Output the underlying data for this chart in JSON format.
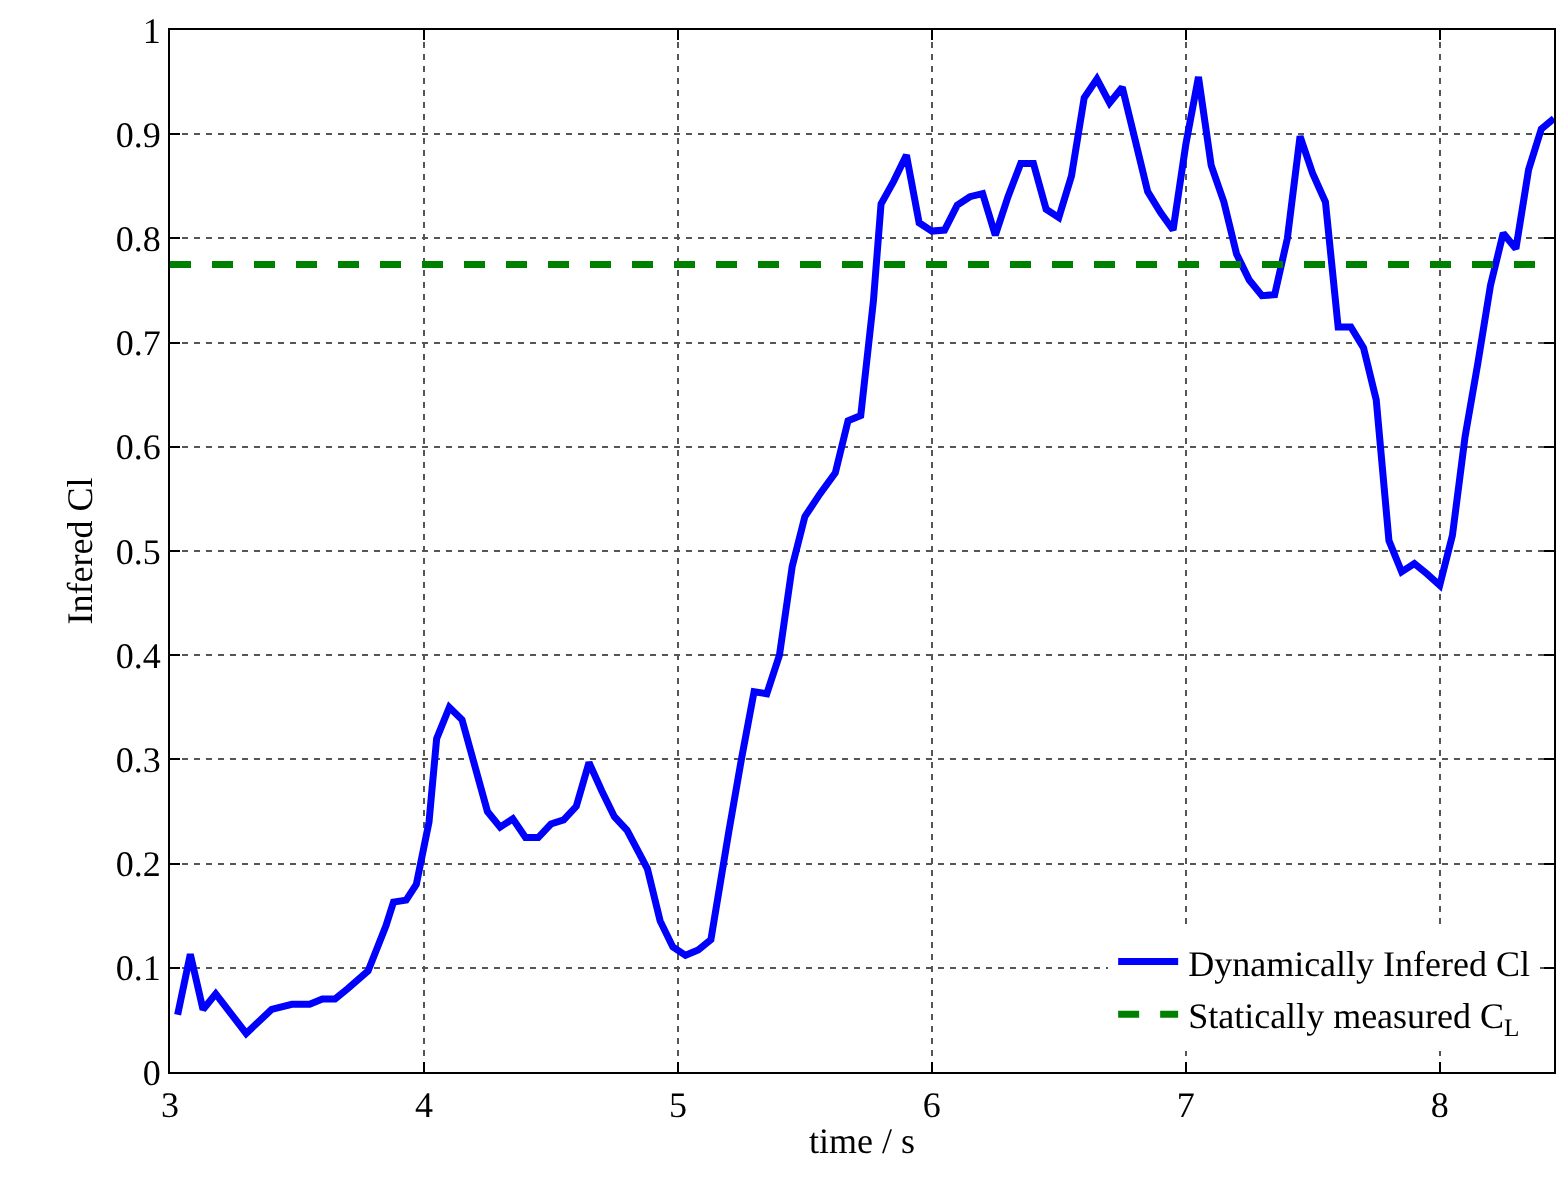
{
  "chart_data": {
    "type": "line",
    "xlabel": "time / s",
    "ylabel": "Infered Cl",
    "xlim": [
      3,
      8.45
    ],
    "xticks": [
      3,
      4,
      5,
      6,
      7,
      8
    ],
    "ylim": [
      0,
      1
    ],
    "yticks": [
      0,
      0.1,
      0.2,
      0.3,
      0.4,
      0.5,
      0.6,
      0.7,
      0.8,
      0.9,
      1
    ],
    "grid": true,
    "legend": "bottom right",
    "line_style": "solid",
    "marker": "none",
    "series": [
      {
        "name": "Dynamically Infered Cl",
        "color": "#0000ff",
        "x": [
          3.03,
          3.08,
          3.13,
          3.18,
          3.3,
          3.4,
          3.48,
          3.55,
          3.6,
          3.65,
          3.7,
          3.78,
          3.85,
          3.88,
          3.93,
          3.97,
          4.02,
          4.05,
          4.1,
          4.15,
          4.25,
          4.3,
          4.35,
          4.4,
          4.45,
          4.5,
          4.55,
          4.6,
          4.65,
          4.7,
          4.75,
          4.8,
          4.88,
          4.93,
          4.98,
          5.03,
          5.08,
          5.13,
          5.2,
          5.25,
          5.3,
          5.35,
          5.4,
          5.45,
          5.5,
          5.56,
          5.62,
          5.67,
          5.72,
          5.77,
          5.8,
          5.85,
          5.9,
          5.95,
          6.0,
          6.05,
          6.1,
          6.15,
          6.2,
          6.25,
          6.3,
          6.35,
          6.4,
          6.45,
          6.5,
          6.55,
          6.6,
          6.65,
          6.7,
          6.75,
          6.8,
          6.85,
          6.9,
          6.95,
          7.0,
          7.05,
          7.1,
          7.15,
          7.2,
          7.25,
          7.3,
          7.35,
          7.4,
          7.45,
          7.5,
          7.55,
          7.6,
          7.65,
          7.7,
          7.75,
          7.8,
          7.85,
          7.9,
          7.95,
          8.0,
          8.05,
          8.1,
          8.15,
          8.2,
          8.25,
          8.3,
          8.35,
          8.4,
          8.45
        ],
        "values": [
          0.055,
          0.113,
          0.06,
          0.075,
          0.037,
          0.06,
          0.065,
          0.065,
          0.07,
          0.07,
          0.08,
          0.097,
          0.14,
          0.163,
          0.165,
          0.18,
          0.24,
          0.32,
          0.35,
          0.338,
          0.25,
          0.235,
          0.243,
          0.225,
          0.225,
          0.238,
          0.242,
          0.255,
          0.297,
          0.27,
          0.245,
          0.232,
          0.195,
          0.145,
          0.12,
          0.112,
          0.117,
          0.127,
          0.23,
          0.3,
          0.365,
          0.363,
          0.4,
          0.485,
          0.533,
          0.555,
          0.575,
          0.625,
          0.63,
          0.74,
          0.833,
          0.855,
          0.88,
          0.815,
          0.807,
          0.808,
          0.832,
          0.84,
          0.843,
          0.803,
          0.84,
          0.872,
          0.872,
          0.828,
          0.82,
          0.86,
          0.935,
          0.953,
          0.93,
          0.945,
          0.895,
          0.845,
          0.825,
          0.808,
          0.89,
          0.955,
          0.87,
          0.835,
          0.785,
          0.76,
          0.745,
          0.746,
          0.8,
          0.898,
          0.862,
          0.835,
          0.715,
          0.715,
          0.695,
          0.645,
          0.51,
          0.48,
          0.488,
          0.478,
          0.467,
          0.515,
          0.61,
          0.68,
          0.755,
          0.805,
          0.79,
          0.866,
          0.905,
          0.915
        ]
      }
    ],
    "ref_lines": [
      {
        "axis": "y",
        "value": 0.775,
        "label": "Statically measured C$_{L}$",
        "color": "#008000",
        "line_style": "dashed"
      }
    ]
  }
}
